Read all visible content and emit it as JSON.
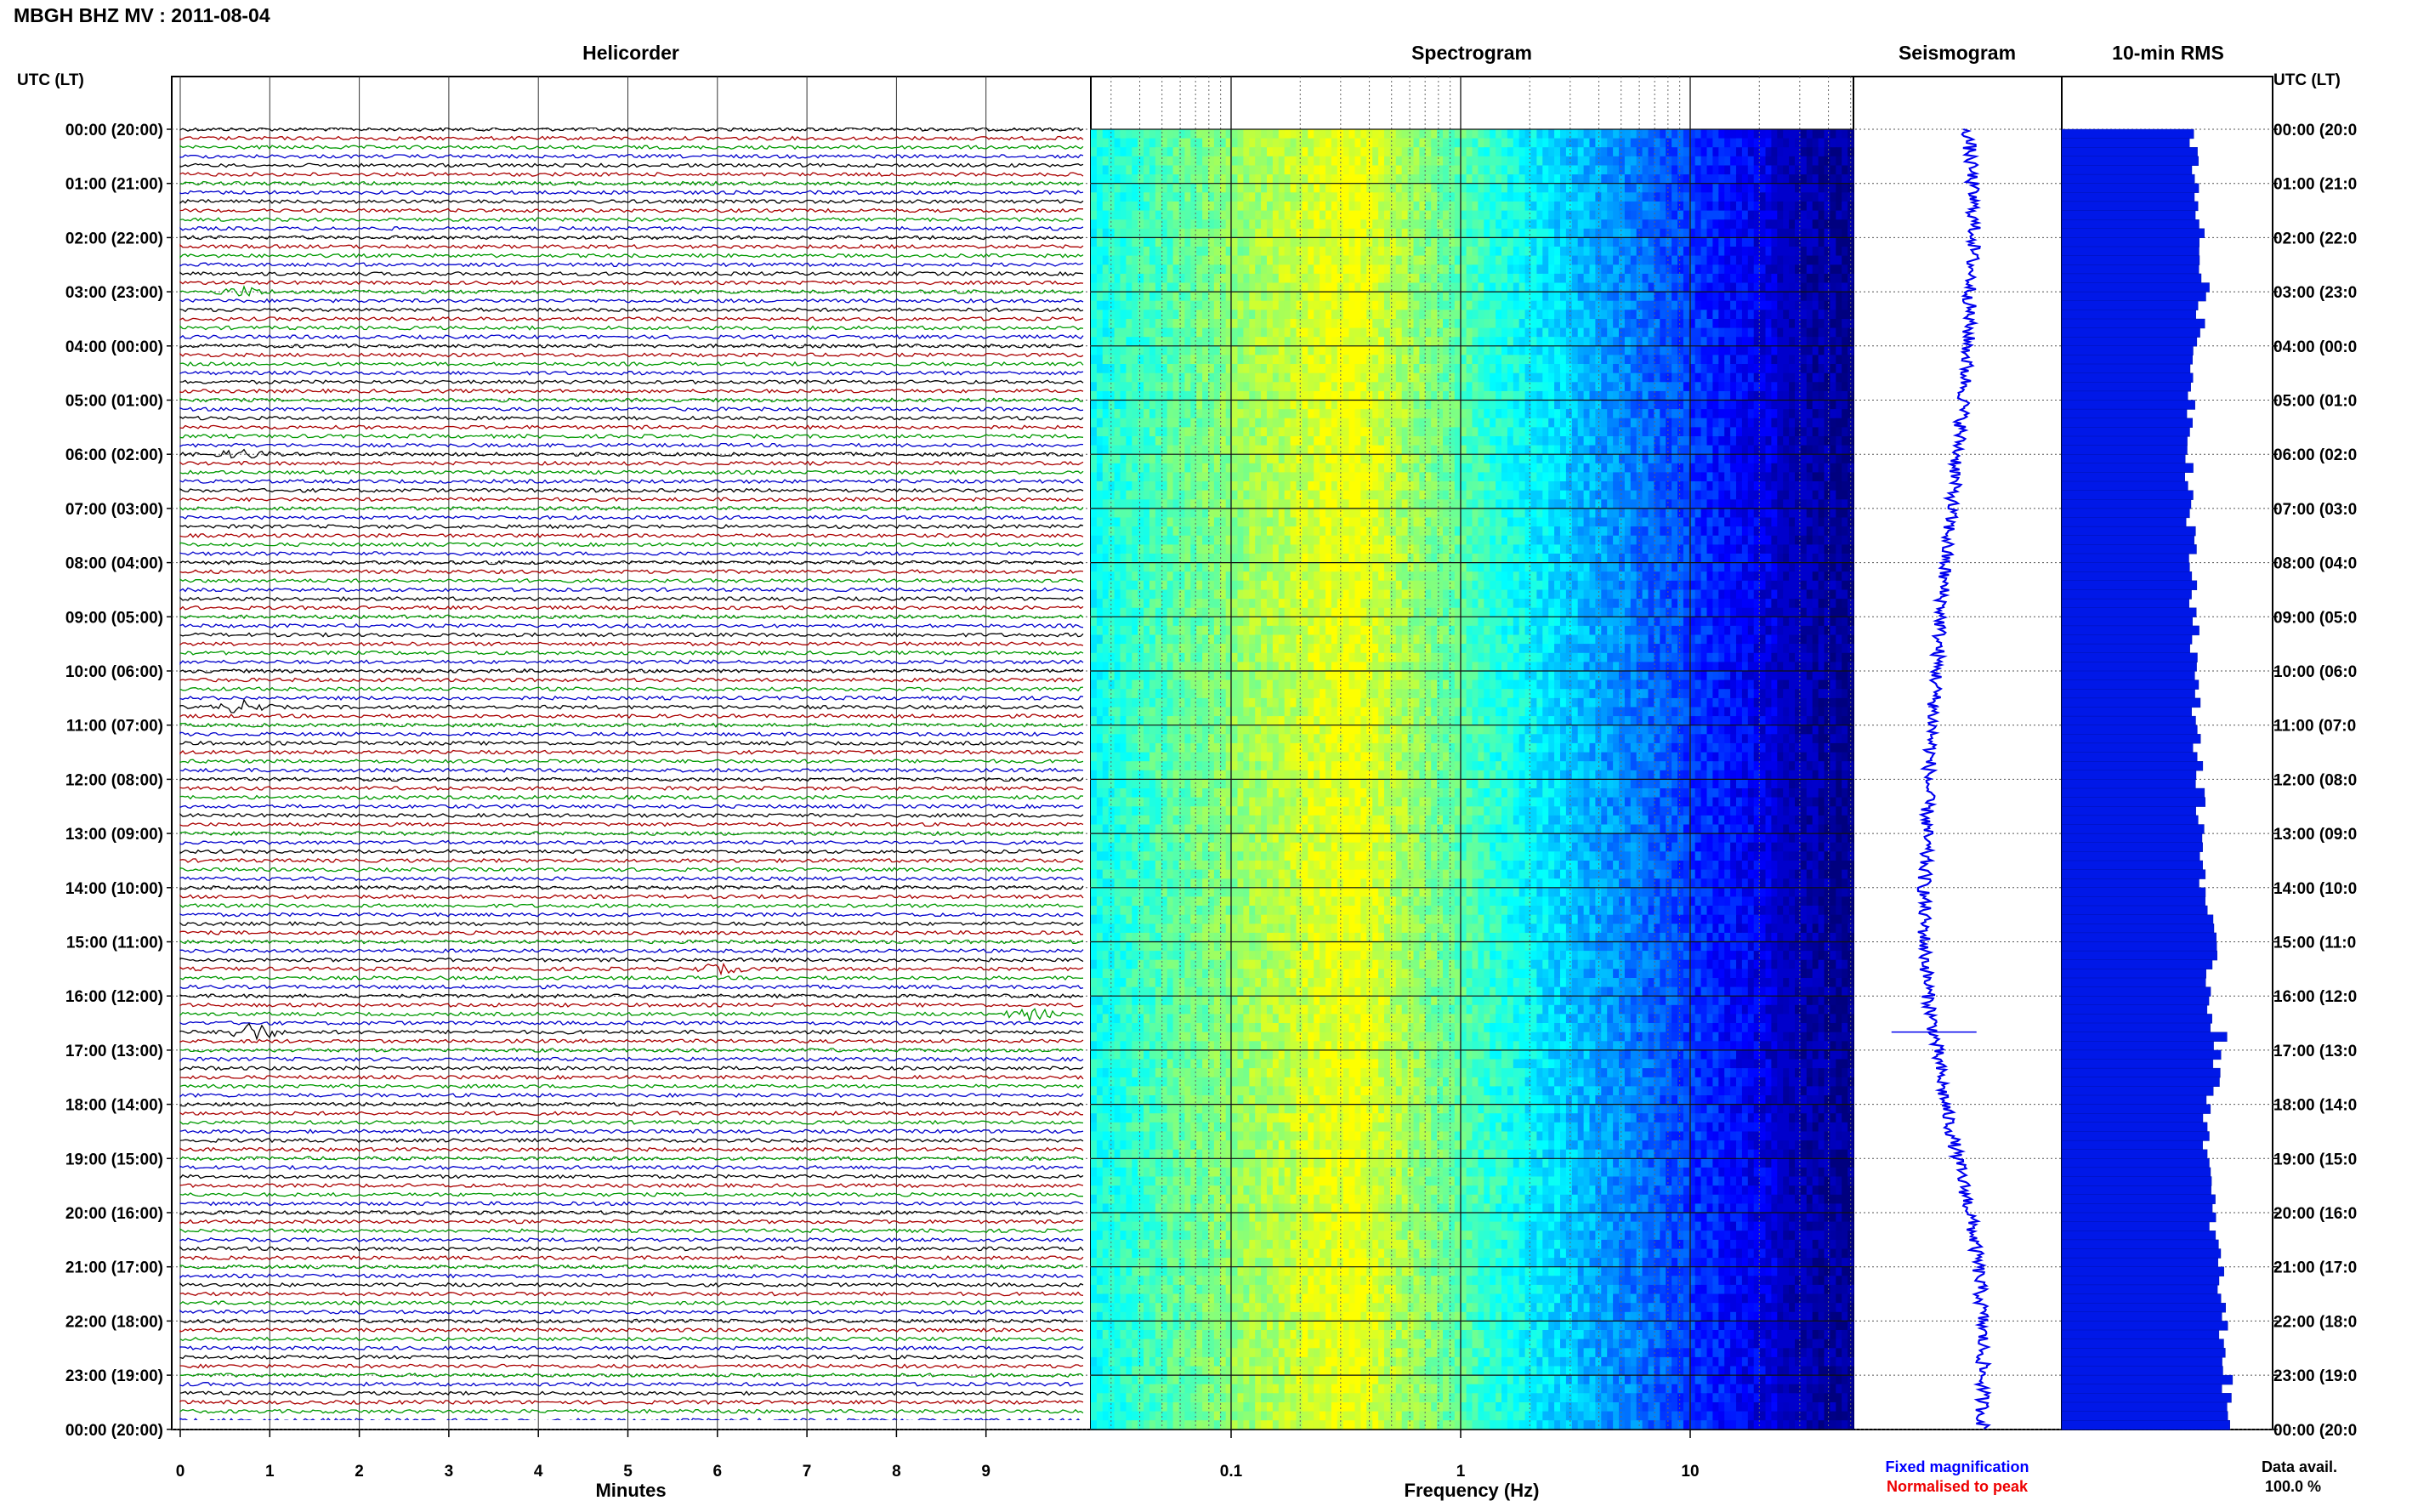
{
  "header": {
    "title": "MBGH BHZ MV : 2011-08-04",
    "time_axis_label_left": "UTC (LT)",
    "time_axis_label_right": "UTC (LT)"
  },
  "panels": {
    "helicorder": "Helicorder",
    "spectrogram": "Spectrogram",
    "seismogram": "Seismogram",
    "rms": "10-min RMS"
  },
  "time_labels_left": [
    "00:00 (20:00)",
    "01:00 (21:00)",
    "02:00 (22:00)",
    "03:00 (23:00)",
    "04:00 (00:00)",
    "05:00 (01:00)",
    "06:00 (02:00)",
    "07:00 (03:00)",
    "08:00 (04:00)",
    "09:00 (05:00)",
    "10:00 (06:00)",
    "11:00 (07:00)",
    "12:00 (08:00)",
    "13:00 (09:00)",
    "14:00 (10:00)",
    "15:00 (11:00)",
    "16:00 (12:00)",
    "17:00 (13:00)",
    "18:00 (14:00)",
    "19:00 (15:00)",
    "20:00 (16:00)",
    "21:00 (17:00)",
    "22:00 (18:00)",
    "23:00 (19:00)",
    "00:00 (20:00)"
  ],
  "time_labels_right": [
    "00:00 (20:0",
    "01:00 (21:0",
    "02:00 (22:0",
    "03:00 (23:0",
    "04:00 (00:0",
    "05:00 (01:0",
    "06:00 (02:0",
    "07:00 (03:0",
    "08:00 (04:0",
    "09:00 (05:0",
    "10:00 (06:0",
    "11:00 (07:0",
    "12:00 (08:0",
    "13:00 (09:0",
    "14:00 (10:0",
    "15:00 (11:0",
    "16:00 (12:0",
    "17:00 (13:0",
    "18:00 (14:0",
    "19:00 (15:0",
    "20:00 (16:0",
    "21:00 (17:0",
    "22:00 (18:0",
    "23:00 (19:0",
    "00:00 (20:0"
  ],
  "footer": {
    "minutes_label": "Minutes",
    "frequency_label": "Frequency (Hz)",
    "fixed_magnification": "Fixed magnification",
    "normalised_to_peak": "Normalised to peak",
    "data_avail_label": "Data avail.",
    "data_avail_value": "100.0 %"
  },
  "colors": {
    "trace_cycle": [
      "#000000",
      "#aa0000",
      "#009900",
      "#0000cc"
    ],
    "seismogram": "#0000ee",
    "rms_bars": "#0018e8",
    "legend_fixed": "#0000ff",
    "legend_normalised": "#ee0000",
    "spectrogram_scale": [
      "#00007f",
      "#0000ff",
      "#0080ff",
      "#00ffff",
      "#80ff80",
      "#ffff00"
    ]
  },
  "chart_data": [
    {
      "type": "line",
      "name": "helicorder",
      "title": "Helicorder",
      "xlabel": "Minutes",
      "x_ticks": [
        "0",
        "1",
        "2",
        "3",
        "4",
        "5",
        "6",
        "7",
        "8",
        "9"
      ],
      "xlim": [
        0,
        10
      ],
      "rows_per_hour": 6,
      "hours": 24,
      "events": [
        {
          "hour": 3,
          "row": 0,
          "minute": 0.7,
          "amplitude": 1.5
        },
        {
          "hour": 6,
          "row": 0,
          "minute": 0.7,
          "amplitude": 1.4
        },
        {
          "hour": 10,
          "row": 4,
          "minute": 0.7,
          "amplitude": 2.0
        },
        {
          "hour": 15,
          "row": 3,
          "minute": 6.0,
          "amplitude": 1.4
        },
        {
          "hour": 16,
          "row": 2,
          "minute": 9.5,
          "amplitude": 1.8
        },
        {
          "hour": 16,
          "row": 4,
          "minute": 0.8,
          "amplitude": 3.2
        }
      ]
    },
    {
      "type": "heatmap",
      "name": "spectrogram",
      "title": "Spectrogram",
      "xlabel": "Frequency (Hz)",
      "x_scale": "log",
      "x_ticks": [
        "0.1",
        "1",
        "10"
      ],
      "xlim": [
        0.01,
        50
      ],
      "peak_frequency_hz": 0.35,
      "rows": 144
    },
    {
      "type": "line",
      "name": "seismogram",
      "title": "Seismogram",
      "drift_profile": [
        0.55,
        0.57,
        0.58,
        0.56,
        0.55,
        0.53,
        0.5,
        0.47,
        0.44,
        0.42,
        0.4,
        0.38,
        0.36,
        0.35,
        0.34,
        0.34,
        0.36,
        0.4,
        0.44,
        0.5,
        0.56,
        0.6,
        0.62,
        0.62,
        0.62
      ],
      "events": [
        {
          "hour": 16,
          "row": 4,
          "extent": 1.0
        }
      ]
    },
    {
      "type": "bar",
      "name": "rms",
      "title": "10-min RMS",
      "orientation": "horizontal",
      "hourly_rms_relative": [
        0.72,
        0.74,
        0.75,
        0.78,
        0.72,
        0.71,
        0.7,
        0.7,
        0.71,
        0.73,
        0.72,
        0.74,
        0.75,
        0.76,
        0.78,
        0.82,
        0.8,
        0.86,
        0.8,
        0.79,
        0.82,
        0.86,
        0.88,
        0.9,
        0.9
      ]
    }
  ]
}
